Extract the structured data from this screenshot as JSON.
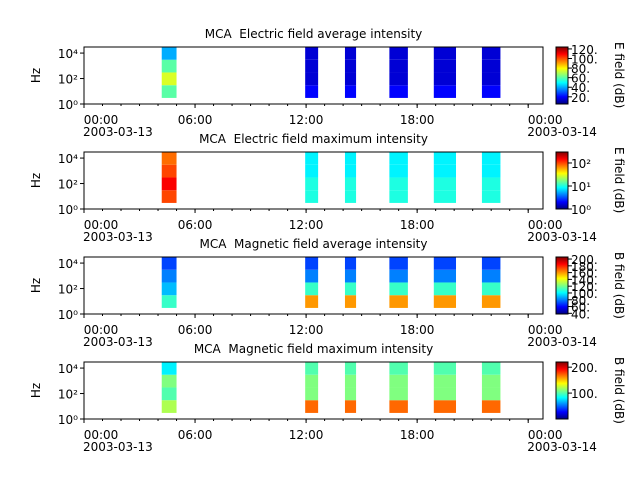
{
  "chart_data": [
    {
      "type": "spectrogram",
      "title": "MCA  Electric field average intensity",
      "ylabel": "Hz",
      "colormap": "jet",
      "yscale": "log",
      "xlim": [
        0,
        24.8
      ],
      "xticks": [
        {
          "value": 0,
          "label": "00:00",
          "date": "2003-03-13"
        },
        {
          "value": 6,
          "label": "06:00"
        },
        {
          "value": 12,
          "label": "12:00"
        },
        {
          "value": 18,
          "label": "18:00"
        },
        {
          "value": 24,
          "label": "00:00",
          "date": "2003-03-14"
        }
      ],
      "ylim": [
        1,
        30000
      ],
      "yticks": [
        {
          "value": 1,
          "label": "10⁰"
        },
        {
          "value": 100,
          "label": "10²"
        },
        {
          "value": 10000,
          "label": "10⁴"
        }
      ],
      "freq_bins": [
        3,
        30,
        300,
        3000,
        30000
      ],
      "blocks": [
        {
          "start": 4.2,
          "end": 5.0,
          "values": [
            60,
            75,
            60,
            40
          ]
        },
        {
          "start": 11.95,
          "end": 12.65,
          "values": [
            20,
            15,
            15,
            15
          ]
        },
        {
          "start": 14.1,
          "end": 14.7,
          "values": [
            20,
            15,
            15,
            15
          ]
        },
        {
          "start": 16.5,
          "end": 17.5,
          "values": [
            20,
            15,
            15,
            15
          ]
        },
        {
          "start": 18.9,
          "end": 20.1,
          "values": [
            20,
            15,
            15,
            15
          ]
        },
        {
          "start": 21.5,
          "end": 22.5,
          "values": [
            20,
            15,
            15,
            15
          ]
        }
      ],
      "colorbar": {
        "label": "E field (dB)",
        "scale": "linear",
        "lim": [
          5,
          124
        ],
        "ticks": [
          {
            "value": 20,
            "label": "20."
          },
          {
            "value": 40,
            "label": "40."
          },
          {
            "value": 60,
            "label": "60."
          },
          {
            "value": 80,
            "label": "80."
          },
          {
            "value": 100,
            "label": "100."
          },
          {
            "value": 120,
            "label": "120."
          }
        ]
      }
    },
    {
      "type": "spectrogram",
      "title": "MCA  Electric field maximum intensity",
      "ylabel": "Hz",
      "colormap": "jet",
      "yscale": "log",
      "xlim": [
        0,
        24.8
      ],
      "xticks": [
        {
          "value": 0,
          "label": "00:00",
          "date": "2003-03-13"
        },
        {
          "value": 6,
          "label": "06:00"
        },
        {
          "value": 12,
          "label": "12:00"
        },
        {
          "value": 18,
          "label": "18:00"
        },
        {
          "value": 24,
          "label": "00:00",
          "date": "2003-03-14"
        }
      ],
      "ylim": [
        1,
        30000
      ],
      "yticks": [
        {
          "value": 1,
          "label": "10⁰"
        },
        {
          "value": 100,
          "label": "10²"
        },
        {
          "value": 10000,
          "label": "10⁴"
        }
      ],
      "freq_bins": [
        3,
        30,
        300,
        3000,
        30000
      ],
      "blocks": [
        {
          "start": 4.2,
          "end": 5.0,
          "values": [
            100,
            150,
            100,
            80
          ]
        },
        {
          "start": 11.95,
          "end": 12.65,
          "values": [
            10,
            10,
            8,
            8
          ]
        },
        {
          "start": 14.1,
          "end": 14.7,
          "values": [
            10,
            10,
            8,
            8
          ]
        },
        {
          "start": 16.5,
          "end": 17.5,
          "values": [
            10,
            10,
            8,
            8
          ]
        },
        {
          "start": 18.9,
          "end": 20.1,
          "values": [
            10,
            10,
            8,
            8
          ]
        },
        {
          "start": 21.5,
          "end": 22.5,
          "values": [
            10,
            10,
            8,
            8
          ]
        }
      ],
      "colorbar": {
        "label": "E field (dB)",
        "scale": "log",
        "lim": [
          1,
          300
        ],
        "ticks": [
          {
            "value": 1,
            "label": "10⁰"
          },
          {
            "value": 10,
            "label": "10¹"
          },
          {
            "value": 100,
            "label": "10²"
          }
        ]
      }
    },
    {
      "type": "spectrogram",
      "title": "MCA  Magnetic field average intensity",
      "ylabel": "Hz",
      "colormap": "jet",
      "yscale": "log",
      "xlim": [
        0,
        24.8
      ],
      "xticks": [
        {
          "value": 0,
          "label": "00:00",
          "date": "2003-03-13"
        },
        {
          "value": 6,
          "label": "06:00"
        },
        {
          "value": 12,
          "label": "12:00"
        },
        {
          "value": 18,
          "label": "18:00"
        },
        {
          "value": 24,
          "label": "00:00",
          "date": "2003-03-14"
        }
      ],
      "ylim": [
        1,
        30000
      ],
      "yticks": [
        {
          "value": 1,
          "label": "10⁰"
        },
        {
          "value": 100,
          "label": "10²"
        },
        {
          "value": 10000,
          "label": "10⁴"
        }
      ],
      "freq_bins": [
        3,
        30,
        300,
        3000,
        30000
      ],
      "blocks": [
        {
          "start": 4.2,
          "end": 5.0,
          "values": [
            110,
            90,
            80,
            70
          ]
        },
        {
          "start": 11.95,
          "end": 12.65,
          "values": [
            160,
            110,
            80,
            70
          ]
        },
        {
          "start": 14.1,
          "end": 14.7,
          "values": [
            160,
            110,
            80,
            70
          ]
        },
        {
          "start": 16.5,
          "end": 17.5,
          "values": [
            160,
            110,
            80,
            70
          ]
        },
        {
          "start": 18.9,
          "end": 20.1,
          "values": [
            160,
            110,
            80,
            70
          ]
        },
        {
          "start": 21.5,
          "end": 22.5,
          "values": [
            160,
            110,
            80,
            70
          ]
        }
      ],
      "colorbar": {
        "label": "B field (dB)",
        "scale": "linear",
        "lim": [
          38,
          206
        ],
        "ticks": [
          {
            "value": 40,
            "label": "40."
          },
          {
            "value": 60,
            "label": "60."
          },
          {
            "value": 80,
            "label": "80."
          },
          {
            "value": 100,
            "label": "100."
          },
          {
            "value": 120,
            "label": "120."
          },
          {
            "value": 140,
            "label": "140."
          },
          {
            "value": 160,
            "label": "160."
          },
          {
            "value": 180,
            "label": "180."
          },
          {
            "value": 200,
            "label": "200."
          }
        ]
      }
    },
    {
      "type": "spectrogram",
      "title": "MCA  Magnetic field maximum intensity",
      "ylabel": "Hz",
      "colormap": "jet",
      "yscale": "log",
      "xlim": [
        0,
        24.8
      ],
      "xticks": [
        {
          "value": 0,
          "label": "00:00",
          "date": "2003-03-13"
        },
        {
          "value": 6,
          "label": "06:00"
        },
        {
          "value": 12,
          "label": "12:00"
        },
        {
          "value": 18,
          "label": "18:00"
        },
        {
          "value": 24,
          "label": "00:00",
          "date": "2003-03-14"
        }
      ],
      "ylim": [
        1,
        30000
      ],
      "yticks": [
        {
          "value": 1,
          "label": "10⁰"
        },
        {
          "value": 100,
          "label": "10²"
        },
        {
          "value": 10000,
          "label": "10⁴"
        }
      ],
      "freq_bins": [
        3,
        30,
        300,
        3000,
        30000
      ],
      "blocks": [
        {
          "start": 4.2,
          "end": 5.0,
          "values": [
            120,
            100,
            110,
            80
          ]
        },
        {
          "start": 11.95,
          "end": 12.65,
          "values": [
            170,
            110,
            110,
            100
          ]
        },
        {
          "start": 14.1,
          "end": 14.7,
          "values": [
            170,
            110,
            110,
            100
          ]
        },
        {
          "start": 16.5,
          "end": 17.5,
          "values": [
            170,
            110,
            110,
            100
          ]
        },
        {
          "start": 18.9,
          "end": 20.1,
          "values": [
            170,
            110,
            110,
            100
          ]
        },
        {
          "start": 21.5,
          "end": 22.5,
          "values": [
            170,
            110,
            110,
            100
          ]
        }
      ],
      "colorbar": {
        "label": "B field (dB)",
        "scale": "linear",
        "lim": [
          0,
          220
        ],
        "ticks": [
          {
            "value": 100,
            "label": "100."
          },
          {
            "value": 200,
            "label": "200."
          }
        ]
      }
    }
  ]
}
